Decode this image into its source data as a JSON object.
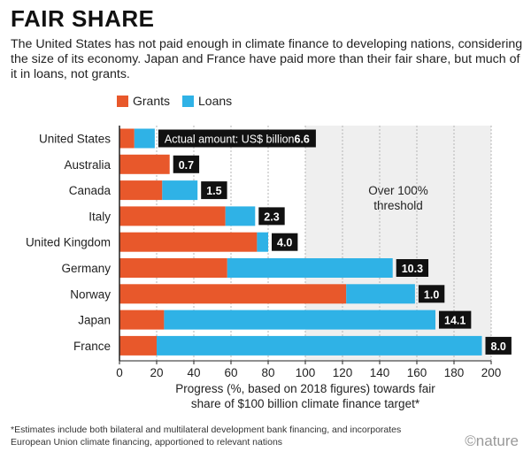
{
  "header": {
    "title": "FAIR SHARE",
    "subtitle": "The United States has not paid enough in climate finance to developing nations, considering the size of its economy. Japan and France have paid more than their fair share, but much of it in loans, not grants."
  },
  "legend": [
    {
      "label": "Grants",
      "color": "#e8582b"
    },
    {
      "label": "Loans",
      "color": "#2fb2e6"
    }
  ],
  "footnote": "*Estimates include both bilateral and multilateral development bank financing, and incorporates European Union climate financing, apportioned to relevant nations",
  "logo": "©nature",
  "chart_data": {
    "type": "bar",
    "orientation": "horizontal",
    "stacked": true,
    "categories": [
      "United States",
      "Australia",
      "Canada",
      "Italy",
      "United Kingdom",
      "Germany",
      "Norway",
      "Japan",
      "France"
    ],
    "series": [
      {
        "name": "Grants",
        "color": "#e8582b",
        "values": [
          8,
          27,
          23,
          57,
          74,
          58,
          122,
          24,
          20
        ]
      },
      {
        "name": "Loans",
        "color": "#2fb2e6",
        "values": [
          11,
          0,
          19,
          16,
          6,
          89,
          37,
          146,
          175
        ]
      }
    ],
    "data_labels": [
      "6.6",
      "0.7",
      "1.5",
      "2.3",
      "4.0",
      "10.3",
      "1.0",
      "14.1",
      "8.0"
    ],
    "first_label_prefix": "Actual amount: US$ billion",
    "x_ticks": [
      0,
      20,
      40,
      60,
      80,
      100,
      120,
      140,
      160,
      180,
      200
    ],
    "xlim": [
      0,
      200
    ],
    "xlabel": "Progress (%, based on 2018 figures) towards fair share of $100 billion climate finance target*",
    "threshold": {
      "from": 100,
      "label": "Over 100% threshold",
      "color": "#efefef"
    }
  }
}
